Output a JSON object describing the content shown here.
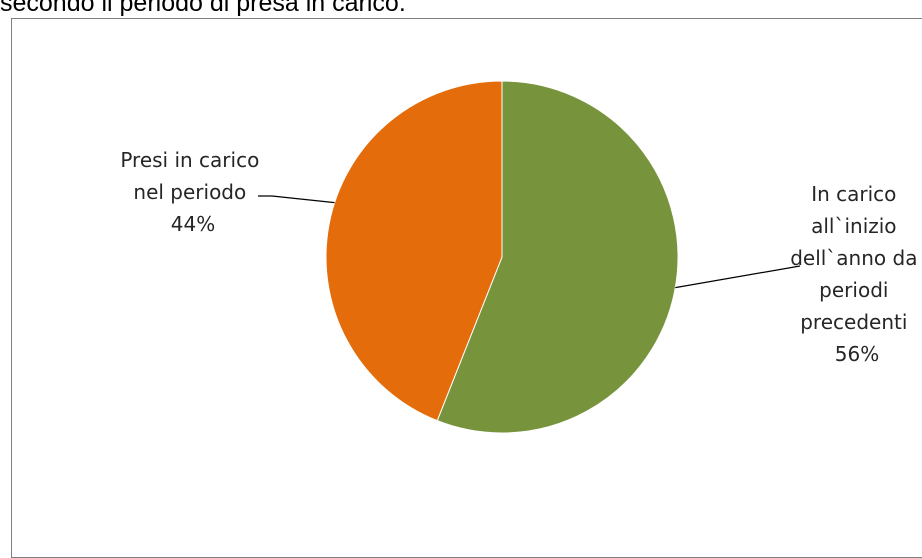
{
  "caption": "secondo il periodo di presa in carico.",
  "chart_data": {
    "type": "pie",
    "title": "",
    "categories": [
      "In carico all`inizio dell`anno da periodi precedenti",
      "Presi in carico nel periodo"
    ],
    "values": [
      56,
      44
    ],
    "unit": "%",
    "colors": [
      "#77933c",
      "#e46c0a"
    ],
    "slices": [
      {
        "label": "In carico all`inizio dell`anno da periodi precedenti",
        "value": 56,
        "color": "#77933c",
        "label_lines": [
          "In carico",
          "all`inizio",
          "dell`anno da",
          "periodi",
          "precedenti",
          "56%"
        ]
      },
      {
        "label": "Presi in carico nel periodo",
        "value": 44,
        "color": "#e46c0a",
        "label_lines": [
          "Presi in carico",
          "nel periodo",
          "44%"
        ]
      }
    ],
    "legend": "none",
    "data_labels": "outside-with-leader-lines"
  }
}
